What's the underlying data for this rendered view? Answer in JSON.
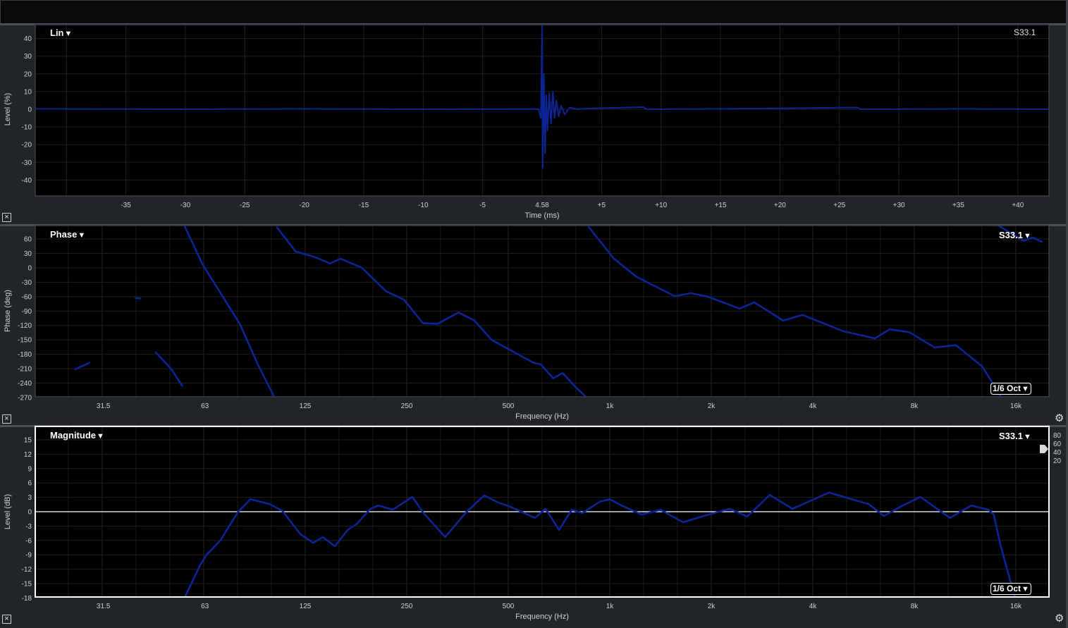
{
  "chart_data": [
    {
      "type": "line",
      "mode_label": "Lin",
      "trace_label": "S33.1",
      "xlabel": "Time (ms)",
      "ylabel": "Level (%)",
      "xlim": [
        -42.6,
        42.6
      ],
      "ylim": [
        -49,
        48
      ],
      "grid": true,
      "x_ticks": [
        {
          "value": -35,
          "label": "-35"
        },
        {
          "value": -30,
          "label": "-30"
        },
        {
          "value": -25,
          "label": "-25"
        },
        {
          "value": -20,
          "label": "-20"
        },
        {
          "value": -15,
          "label": "-15"
        },
        {
          "value": -10,
          "label": "-10"
        },
        {
          "value": -5,
          "label": "-5"
        },
        {
          "value": 0,
          "label": "4.58"
        },
        {
          "value": 5,
          "label": "+5"
        },
        {
          "value": 10,
          "label": "+10"
        },
        {
          "value": 15,
          "label": "+15"
        },
        {
          "value": 20,
          "label": "+20"
        },
        {
          "value": 25,
          "label": "+25"
        },
        {
          "value": 30,
          "label": "+30"
        },
        {
          "value": 35,
          "label": "+35"
        },
        {
          "value": 40,
          "label": "+40"
        }
      ],
      "y_ticks": [
        40,
        30,
        20,
        10,
        0,
        -10,
        -20,
        -30,
        -40
      ],
      "series": [
        {
          "color": "#0c2494",
          "points": [
            [
              -42.6,
              0.2
            ],
            [
              -30,
              0
            ],
            [
              -20,
              0.2
            ],
            [
              -10,
              0
            ],
            [
              -0.3,
              0.1
            ],
            [
              -0.1,
              -5
            ],
            [
              0,
              48
            ],
            [
              0.05,
              -33
            ],
            [
              0.15,
              20
            ],
            [
              0.25,
              -25
            ],
            [
              0.35,
              8
            ],
            [
              0.45,
              -12
            ],
            [
              0.6,
              9
            ],
            [
              0.75,
              -8
            ],
            [
              0.9,
              10
            ],
            [
              1.05,
              -5
            ],
            [
              1.2,
              5
            ],
            [
              1.4,
              -4
            ],
            [
              1.6,
              2
            ],
            [
              1.9,
              -3
            ],
            [
              2.3,
              1
            ],
            [
              3,
              0
            ],
            [
              4,
              0.5
            ],
            [
              6,
              0.8
            ],
            [
              8.5,
              1.2
            ],
            [
              8.8,
              0
            ],
            [
              15,
              0.2
            ],
            [
              26.5,
              1
            ],
            [
              26.8,
              0
            ],
            [
              35,
              0.2
            ],
            [
              42.6,
              0
            ]
          ]
        }
      ]
    },
    {
      "type": "line",
      "mode_label": "Phase",
      "trace_label": "S33.1",
      "smoothing_label": "1/6 Oct",
      "xlabel": "Frequency (Hz)",
      "ylabel": "Phase (deg)",
      "x_scale": "log",
      "xlim": [
        20,
        20000
      ],
      "ylim": [
        -270,
        88
      ],
      "grid": true,
      "x_ticks": [
        {
          "value": 31.5,
          "label": "31.5"
        },
        {
          "value": 63,
          "label": "63"
        },
        {
          "value": 125,
          "label": "125"
        },
        {
          "value": 250,
          "label": "250"
        },
        {
          "value": 500,
          "label": "500"
        },
        {
          "value": 1000,
          "label": "1k"
        },
        {
          "value": 2000,
          "label": "2k"
        },
        {
          "value": 4000,
          "label": "4k"
        },
        {
          "value": 8000,
          "label": "8k"
        },
        {
          "value": 16000,
          "label": "16k"
        }
      ],
      "y_ticks": [
        60,
        30,
        0,
        -30,
        -60,
        -90,
        -120,
        -150,
        -180,
        -210,
        -240,
        -270
      ],
      "series": [
        {
          "color": "#0c2494",
          "segments": [
            [
              [
                26,
                -211
              ],
              [
                28.6,
                -198
              ]
            ],
            [
              [
                39.3,
                -63
              ],
              [
                40.5,
                -64
              ]
            ],
            [
              [
                45,
                -176
              ],
              [
                50,
                -210
              ],
              [
                54,
                -246
              ]
            ],
            [
              [
                55,
                85
              ],
              [
                62,
                7
              ],
              [
                71,
                -59
              ],
              [
                80,
                -117
              ],
              [
                90,
                -198
              ],
              [
                101,
                -268
              ]
            ],
            [
              [
                103,
                84
              ],
              [
                117,
                34
              ],
              [
                134,
                22
              ],
              [
                148,
                9
              ],
              [
                159,
                19
              ],
              [
                184,
                0
              ],
              [
                217,
                -49
              ],
              [
                245,
                -66
              ],
              [
                279,
                -115
              ],
              [
                308,
                -117
              ],
              [
                356,
                -93
              ],
              [
                397,
                -110
              ],
              [
                446,
                -150
              ],
              [
                595,
                -198
              ],
              [
                624,
                -201
              ],
              [
                680,
                -230
              ],
              [
                724,
                -219
              ],
              [
                794,
                -249
              ],
              [
                845,
                -267
              ]
            ],
            [
              [
                866,
                85
              ],
              [
                1029,
                19
              ],
              [
                1201,
                -19
              ],
              [
                1557,
                -59
              ],
              [
                1740,
                -53
              ],
              [
                1952,
                -60
              ],
              [
                2425,
                -85
              ],
              [
                2683,
                -72
              ],
              [
                3268,
                -110
              ],
              [
                3722,
                -98
              ],
              [
                4922,
                -132
              ],
              [
                6110,
                -147
              ],
              [
                6760,
                -128
              ],
              [
                7733,
                -134
              ],
              [
                9196,
                -166
              ],
              [
                10630,
                -161
              ],
              [
                12700,
                -205
              ],
              [
                13920,
                -249
              ],
              [
                14500,
                -270
              ]
            ],
            [
              [
                14190,
                88
              ],
              [
                16860,
                56
              ],
              [
                17970,
                63
              ],
              [
                19120,
                54
              ]
            ]
          ]
        }
      ]
    },
    {
      "type": "line",
      "mode_label": "Magnitude",
      "trace_label": "S33.1",
      "smoothing_label": "1/6 Oct",
      "xlabel": "Frequency (Hz)",
      "ylabel": "Level (dB)",
      "x_scale": "log",
      "xlim": [
        20,
        20000
      ],
      "ylim": [
        -18,
        17.8
      ],
      "grid": true,
      "reference_line": 0,
      "x_ticks": [
        {
          "value": 31.5,
          "label": "31.5"
        },
        {
          "value": 63,
          "label": "63"
        },
        {
          "value": 125,
          "label": "125"
        },
        {
          "value": 250,
          "label": "250"
        },
        {
          "value": 500,
          "label": "500"
        },
        {
          "value": 1000,
          "label": "1k"
        },
        {
          "value": 2000,
          "label": "2k"
        },
        {
          "value": 4000,
          "label": "4k"
        },
        {
          "value": 8000,
          "label": "8k"
        },
        {
          "value": 16000,
          "label": "16k"
        }
      ],
      "y_ticks": [
        15,
        12,
        9,
        6,
        3,
        0,
        -3,
        -6,
        -9,
        -12,
        -15,
        -18
      ],
      "side_scale": [
        "80",
        "60",
        "40",
        "20"
      ],
      "series": [
        {
          "color": "#0c2494",
          "points": [
            [
              55,
              -17.8
            ],
            [
              60.8,
              -11.3
            ],
            [
              63.7,
              -9.0
            ],
            [
              70,
              -6.0
            ],
            [
              78.8,
              -0.15
            ],
            [
              86,
              2.6
            ],
            [
              98,
              1.6
            ],
            [
              107,
              0.15
            ],
            [
              121,
              -4.7
            ],
            [
              132,
              -6.5
            ],
            [
              141,
              -5.3
            ],
            [
              153,
              -7.2
            ],
            [
              167,
              -3.8
            ],
            [
              178,
              -2.5
            ],
            [
              195,
              0.6
            ],
            [
              206,
              1.3
            ],
            [
              227,
              0.4
            ],
            [
              260,
              3.1
            ],
            [
              279,
              -0.1
            ],
            [
              325,
              -5.3
            ],
            [
              373,
              -0.3
            ],
            [
              424,
              3.4
            ],
            [
              467,
              1.9
            ],
            [
              500,
              1.2
            ],
            [
              600,
              -1.3
            ],
            [
              645,
              0.6
            ],
            [
              707,
              -3.8
            ],
            [
              771,
              0.4
            ],
            [
              829,
              -0.3
            ],
            [
              935,
              2.1
            ],
            [
              1000,
              2.6
            ],
            [
              1090,
              1.2
            ],
            [
              1242,
              -0.6
            ],
            [
              1414,
              0.4
            ],
            [
              1650,
              -2.2
            ],
            [
              1897,
              -0.9
            ],
            [
              2267,
              0.6
            ],
            [
              2556,
              -1.0
            ],
            [
              2982,
              3.5
            ],
            [
              3480,
              0.6
            ],
            [
              4470,
              4.0
            ],
            [
              5210,
              2.6
            ],
            [
              5860,
              1.6
            ],
            [
              6500,
              -0.9
            ],
            [
              7260,
              1.0
            ],
            [
              8340,
              3.1
            ],
            [
              10200,
              -1.3
            ],
            [
              11800,
              1.3
            ],
            [
              13270,
              0.4
            ],
            [
              13760,
              -0.6
            ],
            [
              14400,
              -6.9
            ],
            [
              15880,
              -17.8
            ]
          ]
        }
      ]
    }
  ]
}
